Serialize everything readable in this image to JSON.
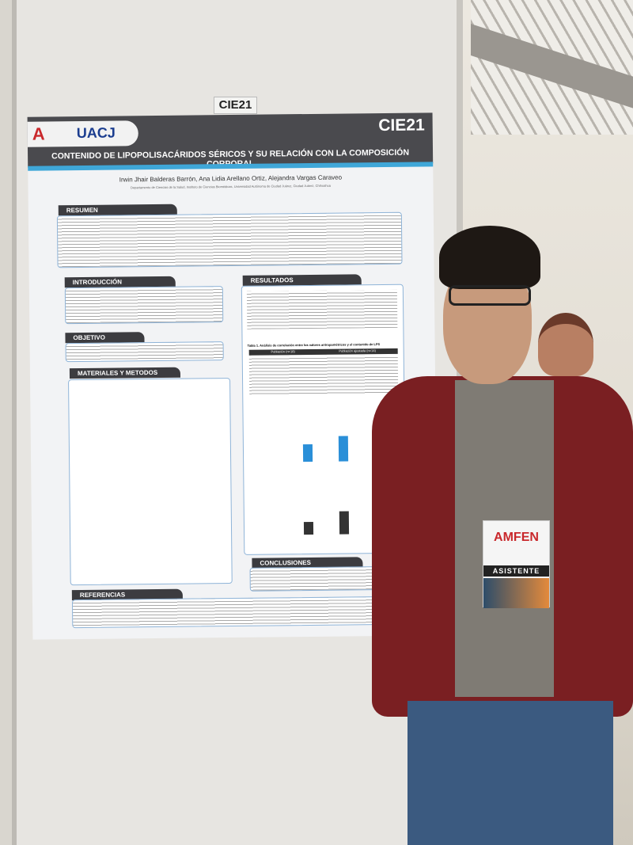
{
  "booth_label": "CIE21",
  "poster": {
    "code": "CIE21",
    "logo_text": "UACJ",
    "logo_mark": "AMFEN",
    "title": "CONTENIDO DE LIPOPOLISACÁRIDOS SÉRICOS Y SU RELACIÓN CON LA COMPOSICIÓN CORPORAL",
    "authors": "Irwin Jhair Balderas Barrón, Ana Lidia Arellano Ortiz, Alejandra Vargas Caraveo",
    "department": "Departamento de Ciencias de la Salud, Instituto de Ciencias Biomédicas, Universidad Autónoma de Ciudad Juárez, Ciudad Juárez, Chihuahua",
    "sections": {
      "resumen": "RESUMEN",
      "introduccion": "INTRODUCCIÓN",
      "objetivo": "OBJETIVO",
      "materiales": "MATERIALES Y METODOS",
      "resultados": "RESULTADOS",
      "conclusiones": "CONCLUSIONES",
      "referencias": "REFERENCIAS"
    },
    "table_caption": "Tabla 1. Análisis de correlación entre los valores antropométricos y el contenido de LPS",
    "table_headers": [
      "Población (n=18)",
      "Población ajustada (n=14)"
    ]
  },
  "badge": {
    "mark": "AMFEN",
    "role": "ASISTENTE"
  }
}
